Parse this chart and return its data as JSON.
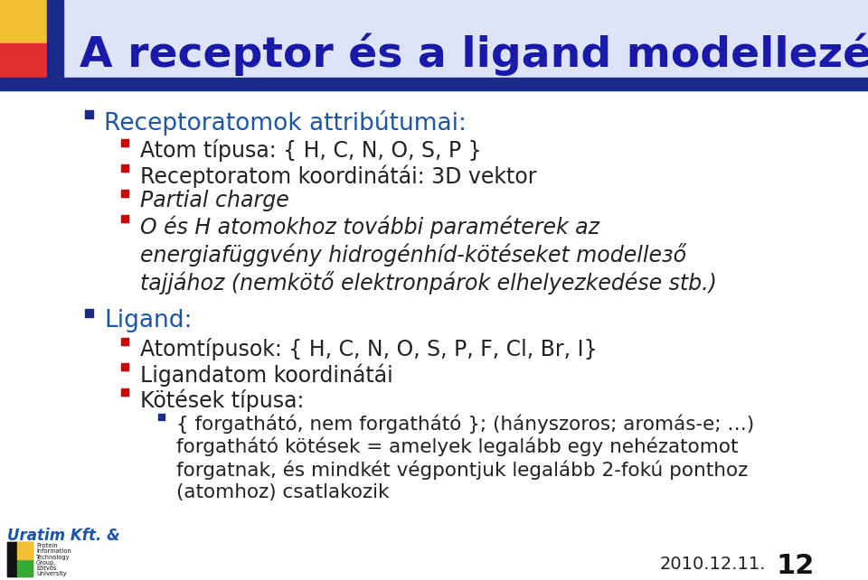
{
  "title": "A receptor és a ligand modellezése",
  "title_color": "#1a1aaa",
  "title_fontsize": 34,
  "bg_color": "#ffffff",
  "bullet_color_dark": "#1a2a8a",
  "bullet_color_red": "#cc0000",
  "date_text": "2010.12.11.",
  "page_num": "12",
  "lines": [
    {
      "level": 0,
      "text": "Receptoratomok attribútumai:",
      "style": "normal",
      "color": "#1a55aa"
    },
    {
      "level": 1,
      "text": "Atom típusa: { H, C, N, O, S, P }",
      "style": "normal",
      "color": "#222222"
    },
    {
      "level": 1,
      "text": "Receptoratom koordinátái: 3D vektor",
      "style": "normal",
      "color": "#222222"
    },
    {
      "level": 1,
      "text": "Partial charge",
      "style": "italic",
      "color": "#222222"
    },
    {
      "level": 1,
      "text": "O és H atomokhoz további paraméterek az\nenergiafüggvény hidrogénhíd-kötéseket modellезő\ntajjához (nemkötő elektronpárok elhelyezkedése stb.)",
      "style": "italic",
      "color": "#222222"
    },
    {
      "level": 0,
      "text": "Ligand:",
      "style": "normal",
      "color": "#1a55aa"
    },
    {
      "level": 1,
      "text": "Atomtípusok: { H, C, N, O, S, P, F, Cl, Br, I}",
      "style": "normal",
      "color": "#222222"
    },
    {
      "level": 1,
      "text": "Ligandatom koordinátái",
      "style": "normal",
      "color": "#222222"
    },
    {
      "level": 1,
      "text": "Kötések típusa:",
      "style": "normal",
      "color": "#222222"
    },
    {
      "level": 2,
      "text": "{ forgathátó, nem forgathátó }; (hányszoros; aromás-e; …)\nforgathátó kötések = amelyek legalább egy nehézatomot\nforgatnak, és mindkét végpontjuk legalább 2-fokú ponthoz\n(atomhoz) csatlakozik",
      "style": "normal",
      "color": "#222222"
    }
  ],
  "logo_texts": [
    "Protein",
    "Information",
    "Technology",
    "Group,",
    "Eötvös",
    "University"
  ]
}
